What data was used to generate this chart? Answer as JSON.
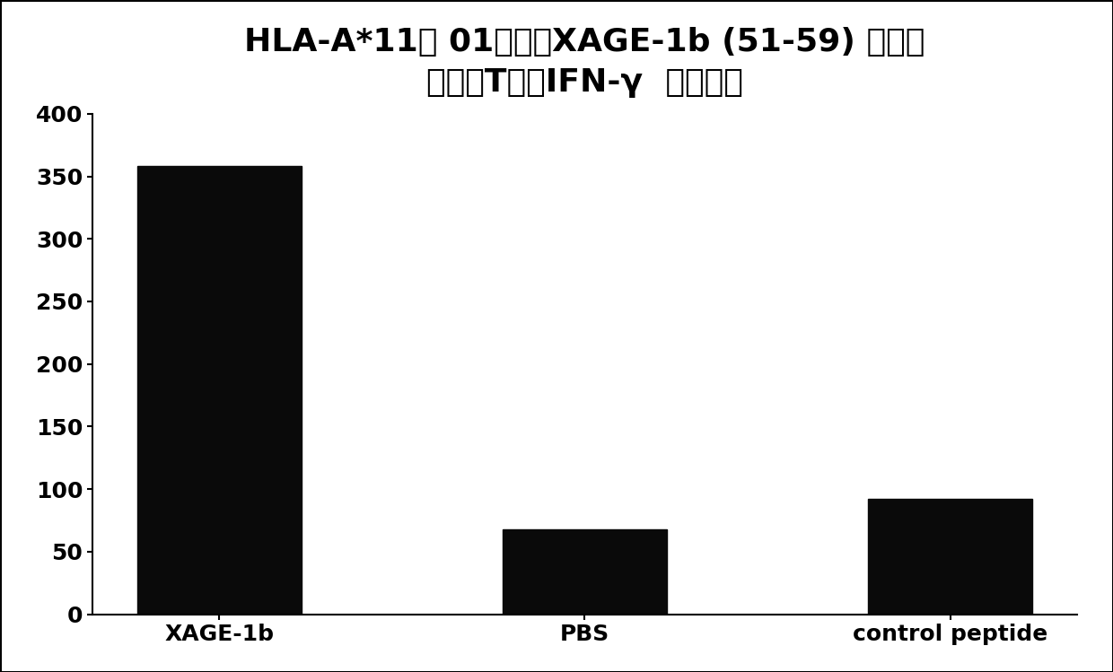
{
  "categories": [
    "XAGE-1b",
    "PBS",
    "control peptide"
  ],
  "values": [
    358,
    68,
    92
  ],
  "bar_color": "#0a0a0a",
  "title_line1": "HLA-A*11： 01限制性XAGE-1b (51-59) 特异性",
  "title_line2": "细胞毒T细胦IFN-γ  分泌试验",
  "ylim": [
    0,
    400
  ],
  "yticks": [
    0,
    50,
    100,
    150,
    200,
    250,
    300,
    350,
    400
  ],
  "background_color": "#ffffff",
  "bar_width": 0.45,
  "title_fontsize": 26,
  "tick_fontsize": 18,
  "xlabel_fontsize": 18,
  "border_color": "#000000"
}
